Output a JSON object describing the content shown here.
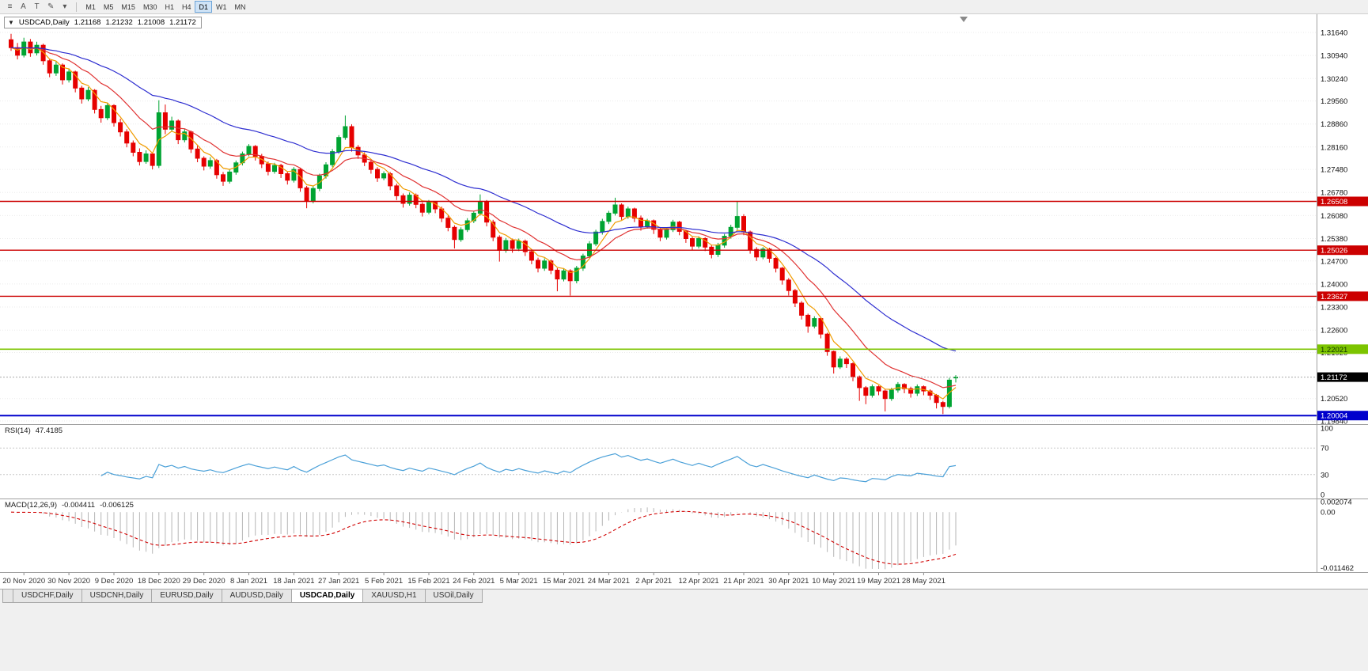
{
  "toolbar": {
    "icons": [
      {
        "name": "chart-grip-icon",
        "glyph": "≡"
      },
      {
        "name": "font-a-button",
        "glyph": "A"
      },
      {
        "name": "text-tool-button",
        "glyph": "T"
      },
      {
        "name": "draw-tool-button",
        "glyph": "✎"
      },
      {
        "name": "draw-dropdown-icon",
        "glyph": "▾"
      }
    ],
    "timeframes": [
      "M1",
      "M5",
      "M15",
      "M30",
      "H1",
      "H4",
      "D1",
      "W1",
      "MN"
    ],
    "active_timeframe": "D1"
  },
  "chart": {
    "collapse_icon": "▼",
    "title": "USDCAD,Daily",
    "open": "1.21168",
    "high": "1.21232",
    "low": "1.21008",
    "close": "1.21172"
  },
  "indicators": {
    "rsi": {
      "name": "RSI(14)",
      "value": "47.4185",
      "axis_labels": [
        "100",
        "70",
        "30",
        "0"
      ],
      "levels": [
        70,
        30
      ],
      "color": "#4aa0d8"
    },
    "macd": {
      "name": "MACD(12,26,9)",
      "value1": "-0.004411",
      "value2": "-0.006125",
      "axis_labels": [
        "0.002074",
        "0.00",
        "-0.011462"
      ],
      "histogram_color": "#b6b6b6",
      "signal_color": "#d00000"
    }
  },
  "tabs": {
    "items": [
      "USDCHF,Daily",
      "USDCNH,Daily",
      "EURUSD,Daily",
      "AUDUSD,Daily",
      "USDCAD,Daily",
      "XAUUSD,H1",
      "USOil,Daily"
    ],
    "active": "USDCAD,Daily"
  },
  "chart_data": {
    "type": "candlestick",
    "symbol": "USDCAD",
    "timeframe": "Daily",
    "colors": {
      "up": "#00a432",
      "down": "#e60000"
    },
    "price_axis": {
      "ticks": [
        "1.31640",
        "1.30940",
        "1.30240",
        "1.29560",
        "1.28860",
        "1.28160",
        "1.27480",
        "1.26780",
        "1.26080",
        "1.25380",
        "1.24700",
        "1.24000",
        "1.23300",
        "1.22600",
        "1.21920",
        "1.20520",
        "1.19840"
      ]
    },
    "current_price": {
      "value": 1.21172,
      "label": "1.21172"
    },
    "hlines": [
      {
        "price": 1.26508,
        "label": "1.26508",
        "color": "#cc0000",
        "width": 1.4,
        "text": "#ffffff"
      },
      {
        "price": 1.25026,
        "label": "1.25026",
        "color": "#cc0000",
        "width": 1.4,
        "text": "#ffffff"
      },
      {
        "price": 1.23627,
        "label": "1.23627",
        "color": "#cc0000",
        "width": 1.4,
        "text": "#ffffff"
      },
      {
        "price": 1.22021,
        "label": "1.22021",
        "color": "#7cc400",
        "width": 1.6,
        "text": "#103300"
      },
      {
        "price": 1.20004,
        "label": "1.20004",
        "color": "#0000cc",
        "width": 2,
        "text": "#ffffff"
      }
    ],
    "moving_averages": [
      {
        "period": 5,
        "color": "#f09c00"
      },
      {
        "period": 13,
        "color": "#e03232"
      },
      {
        "period": 34,
        "color": "#2d2dd0"
      }
    ],
    "rsi_panel": {
      "period": 14,
      "levels": [
        70,
        30
      ],
      "scale_max": 100,
      "scale_min": 0
    },
    "macd_panel": {
      "fast": 12,
      "slow": 26,
      "signal": 9,
      "max": 0.002074,
      "min": -0.011462
    },
    "x_labels": [
      "20 Nov 2020",
      "30 Nov 2020",
      "9 Dec 2020",
      "18 Dec 2020",
      "29 Dec 2020",
      "8 Jan 2021",
      "18 Jan 2021",
      "27 Jan 2021",
      "5 Feb 2021",
      "15 Feb 2021",
      "24 Feb 2021",
      "5 Mar 2021",
      "15 Mar 2021",
      "24 Mar 2021",
      "2 Apr 2021",
      "12 Apr 2021",
      "21 Apr 2021",
      "30 Apr 2021",
      "10 May 2021",
      "19 May 2021",
      "28 May 2021"
    ],
    "x_label_indices": [
      2,
      9,
      16,
      23,
      30,
      37,
      44,
      51,
      58,
      65,
      72,
      79,
      86,
      93,
      100,
      107,
      114,
      121,
      128,
      135,
      142
    ],
    "candles": [
      [
        1.3142,
        1.316,
        1.3108,
        1.3118
      ],
      [
        1.3118,
        1.3132,
        1.3082,
        1.3095
      ],
      [
        1.3095,
        1.3148,
        1.3088,
        1.3135
      ],
      [
        1.3135,
        1.3144,
        1.309,
        1.3102
      ],
      [
        1.3102,
        1.3136,
        1.3094,
        1.3125
      ],
      [
        1.3125,
        1.313,
        1.3066,
        1.3078
      ],
      [
        1.3078,
        1.3085,
        1.3028,
        1.3041
      ],
      [
        1.3041,
        1.3076,
        1.3032,
        1.3065
      ],
      [
        1.3065,
        1.307,
        1.3006,
        1.302
      ],
      [
        1.302,
        1.3055,
        1.3012,
        1.3044
      ],
      [
        1.3044,
        1.3048,
        1.2982,
        1.2995
      ],
      [
        1.2995,
        1.3002,
        1.2948,
        1.2962
      ],
      [
        1.2962,
        1.2998,
        1.2955,
        1.2988
      ],
      [
        1.2988,
        1.2992,
        1.2918,
        1.293
      ],
      [
        1.293,
        1.2941,
        1.289,
        1.2905
      ],
      [
        1.2905,
        1.295,
        1.2898,
        1.2942
      ],
      [
        1.2942,
        1.2946,
        1.2878,
        1.289
      ],
      [
        1.289,
        1.2902,
        1.2848,
        1.2862
      ],
      [
        1.2862,
        1.287,
        1.2815,
        1.2828
      ],
      [
        1.2828,
        1.2836,
        1.2788,
        1.28
      ],
      [
        1.28,
        1.2812,
        1.276,
        1.2772
      ],
      [
        1.2772,
        1.2806,
        1.2765,
        1.2795
      ],
      [
        1.2795,
        1.28,
        1.2748,
        1.276
      ],
      [
        1.276,
        1.2958,
        1.2752,
        1.292
      ],
      [
        1.292,
        1.2945,
        1.2855,
        1.287
      ],
      [
        1.287,
        1.2908,
        1.2862,
        1.2895
      ],
      [
        1.2895,
        1.29,
        1.2825,
        1.2838
      ],
      [
        1.2838,
        1.2872,
        1.283,
        1.2862
      ],
      [
        1.2862,
        1.2866,
        1.2798,
        1.281
      ],
      [
        1.281,
        1.282,
        1.277,
        1.2782
      ],
      [
        1.2782,
        1.2788,
        1.2745,
        1.2758
      ],
      [
        1.2758,
        1.2785,
        1.275,
        1.2775
      ],
      [
        1.2775,
        1.278,
        1.272,
        1.2732
      ],
      [
        1.2732,
        1.274,
        1.2698,
        1.2712
      ],
      [
        1.2712,
        1.2748,
        1.2705,
        1.274
      ],
      [
        1.274,
        1.2775,
        1.2732,
        1.2768
      ],
      [
        1.2768,
        1.2802,
        1.276,
        1.2795
      ],
      [
        1.2795,
        1.2825,
        1.2788,
        1.2818
      ],
      [
        1.2818,
        1.2822,
        1.2775,
        1.2788
      ],
      [
        1.2788,
        1.2795,
        1.2752,
        1.2765
      ],
      [
        1.2765,
        1.2772,
        1.273,
        1.2742
      ],
      [
        1.2742,
        1.2768,
        1.2735,
        1.276
      ],
      [
        1.276,
        1.2765,
        1.2722,
        1.2735
      ],
      [
        1.2735,
        1.2742,
        1.2702,
        1.2715
      ],
      [
        1.2715,
        1.2755,
        1.2708,
        1.2748
      ],
      [
        1.2748,
        1.2752,
        1.268,
        1.2692
      ],
      [
        1.2692,
        1.2698,
        1.263,
        1.2652
      ],
      [
        1.2652,
        1.2698,
        1.2645,
        1.269
      ],
      [
        1.269,
        1.2735,
        1.2682,
        1.2728
      ],
      [
        1.2728,
        1.277,
        1.272,
        1.2762
      ],
      [
        1.2762,
        1.281,
        1.2755,
        1.2802
      ],
      [
        1.2802,
        1.2852,
        1.2795,
        1.2845
      ],
      [
        1.2845,
        1.2912,
        1.2838,
        1.2878
      ],
      [
        1.2878,
        1.2885,
        1.2802,
        1.2815
      ],
      [
        1.2815,
        1.2822,
        1.278,
        1.2792
      ],
      [
        1.2792,
        1.28,
        1.2758,
        1.277
      ],
      [
        1.277,
        1.2778,
        1.2735,
        1.2748
      ],
      [
        1.2748,
        1.2755,
        1.271,
        1.2722
      ],
      [
        1.2722,
        1.2742,
        1.2715,
        1.2735
      ],
      [
        1.2735,
        1.274,
        1.2685,
        1.2698
      ],
      [
        1.2698,
        1.2705,
        1.2655,
        1.2668
      ],
      [
        1.2668,
        1.2675,
        1.2632,
        1.2645
      ],
      [
        1.2645,
        1.2678,
        1.2638,
        1.267
      ],
      [
        1.267,
        1.2675,
        1.263,
        1.2642
      ],
      [
        1.2642,
        1.2648,
        1.2605,
        1.2618
      ],
      [
        1.2618,
        1.2655,
        1.2612,
        1.2648
      ],
      [
        1.2648,
        1.2652,
        1.2615,
        1.2628
      ],
      [
        1.2628,
        1.2635,
        1.2588,
        1.26
      ],
      [
        1.26,
        1.2608,
        1.256,
        1.2572
      ],
      [
        1.2572,
        1.2578,
        1.2508,
        1.2535
      ],
      [
        1.2535,
        1.2572,
        1.2528,
        1.2565
      ],
      [
        1.2565,
        1.26,
        1.2558,
        1.2592
      ],
      [
        1.2592,
        1.2622,
        1.2585,
        1.2615
      ],
      [
        1.2615,
        1.2672,
        1.2608,
        1.265
      ],
      [
        1.265,
        1.2655,
        1.2575,
        1.2588
      ],
      [
        1.2588,
        1.2595,
        1.253,
        1.2542
      ],
      [
        1.2542,
        1.2548,
        1.2468,
        1.2502
      ],
      [
        1.2502,
        1.254,
        1.2495,
        1.2532
      ],
      [
        1.2532,
        1.2538,
        1.2495,
        1.2508
      ],
      [
        1.2508,
        1.2538,
        1.25,
        1.253
      ],
      [
        1.253,
        1.2535,
        1.2485,
        1.2498
      ],
      [
        1.2498,
        1.2505,
        1.246,
        1.2472
      ],
      [
        1.2472,
        1.248,
        1.2435,
        1.2448
      ],
      [
        1.2448,
        1.2478,
        1.244,
        1.247
      ],
      [
        1.247,
        1.2475,
        1.243,
        1.2442
      ],
      [
        1.2442,
        1.2448,
        1.2378,
        1.2415
      ],
      [
        1.2415,
        1.2448,
        1.2408,
        1.244
      ],
      [
        1.244,
        1.2445,
        1.2365,
        1.241
      ],
      [
        1.241,
        1.2455,
        1.2402,
        1.2448
      ],
      [
        1.2448,
        1.2492,
        1.244,
        1.2485
      ],
      [
        1.2485,
        1.253,
        1.2478,
        1.2522
      ],
      [
        1.2522,
        1.2565,
        1.2515,
        1.2558
      ],
      [
        1.2558,
        1.2598,
        1.255,
        1.259
      ],
      [
        1.259,
        1.2622,
        1.2582,
        1.2615
      ],
      [
        1.2615,
        1.2662,
        1.2608,
        1.264
      ],
      [
        1.264,
        1.2645,
        1.2595,
        1.2605
      ],
      [
        1.2605,
        1.2635,
        1.2598,
        1.2628
      ],
      [
        1.2628,
        1.2632,
        1.2588,
        1.26
      ],
      [
        1.26,
        1.2608,
        1.2562,
        1.2575
      ],
      [
        1.2575,
        1.2598,
        1.2568,
        1.2592
      ],
      [
        1.2592,
        1.2596,
        1.2552,
        1.2566
      ],
      [
        1.2566,
        1.2572,
        1.253,
        1.2542
      ],
      [
        1.2542,
        1.2572,
        1.2535,
        1.2565
      ],
      [
        1.2565,
        1.2595,
        1.2558,
        1.2588
      ],
      [
        1.2588,
        1.2592,
        1.2548,
        1.256
      ],
      [
        1.256,
        1.2565,
        1.2525,
        1.2538
      ],
      [
        1.2538,
        1.2545,
        1.2502,
        1.2515
      ],
      [
        1.2515,
        1.2545,
        1.2508,
        1.2538
      ],
      [
        1.2538,
        1.2542,
        1.25,
        1.2512
      ],
      [
        1.2512,
        1.2518,
        1.2478,
        1.249
      ],
      [
        1.249,
        1.2525,
        1.2482,
        1.2518
      ],
      [
        1.2518,
        1.2552,
        1.251,
        1.2545
      ],
      [
        1.2545,
        1.258,
        1.2538,
        1.2572
      ],
      [
        1.2572,
        1.2652,
        1.2565,
        1.2605
      ],
      [
        1.2605,
        1.2612,
        1.2548,
        1.2558
      ],
      [
        1.2558,
        1.2562,
        1.2492,
        1.2505
      ],
      [
        1.2505,
        1.2512,
        1.247,
        1.2482
      ],
      [
        1.2482,
        1.2512,
        1.2475,
        1.2506
      ],
      [
        1.2506,
        1.251,
        1.2465,
        1.2478
      ],
      [
        1.2478,
        1.2482,
        1.2435,
        1.2448
      ],
      [
        1.2448,
        1.2452,
        1.2398,
        1.2412
      ],
      [
        1.2412,
        1.2418,
        1.2365,
        1.238
      ],
      [
        1.238,
        1.2385,
        1.233,
        1.2342
      ],
      [
        1.2342,
        1.2348,
        1.2292,
        1.2305
      ],
      [
        1.2305,
        1.231,
        1.2252,
        1.2272
      ],
      [
        1.2272,
        1.2302,
        1.2265,
        1.2295
      ],
      [
        1.2295,
        1.2298,
        1.2235,
        1.2248
      ],
      [
        1.2248,
        1.2252,
        1.2182,
        1.2195
      ],
      [
        1.2195,
        1.2198,
        1.2128,
        1.2148
      ],
      [
        1.2148,
        1.218,
        1.2142,
        1.2172
      ],
      [
        1.2172,
        1.2178,
        1.2145,
        1.2158
      ],
      [
        1.2158,
        1.2162,
        1.2105,
        1.2118
      ],
      [
        1.2118,
        1.2122,
        1.2045,
        1.2085
      ],
      [
        1.2085,
        1.209,
        1.2035,
        1.2062
      ],
      [
        1.2062,
        1.2095,
        1.2055,
        1.2088
      ],
      [
        1.2088,
        1.2092,
        1.2062,
        1.2075
      ],
      [
        1.2075,
        1.208,
        1.2013,
        1.2052
      ],
      [
        1.2052,
        1.2085,
        1.2045,
        1.2078
      ],
      [
        1.2078,
        1.2102,
        1.207,
        1.2095
      ],
      [
        1.2095,
        1.2099,
        1.2068,
        1.2082
      ],
      [
        1.2082,
        1.2088,
        1.2055,
        1.2068
      ],
      [
        1.2068,
        1.2095,
        1.206,
        1.2088
      ],
      [
        1.2088,
        1.2092,
        1.2062,
        1.2075
      ],
      [
        1.2075,
        1.208,
        1.2048,
        1.2062
      ],
      [
        1.2062,
        1.2066,
        1.2022,
        1.204
      ],
      [
        1.204,
        1.2045,
        1.2005,
        1.2028
      ],
      [
        1.2028,
        1.2115,
        1.2022,
        1.2108
      ],
      [
        1.21168,
        1.21232,
        1.21008,
        1.21172
      ]
    ]
  }
}
